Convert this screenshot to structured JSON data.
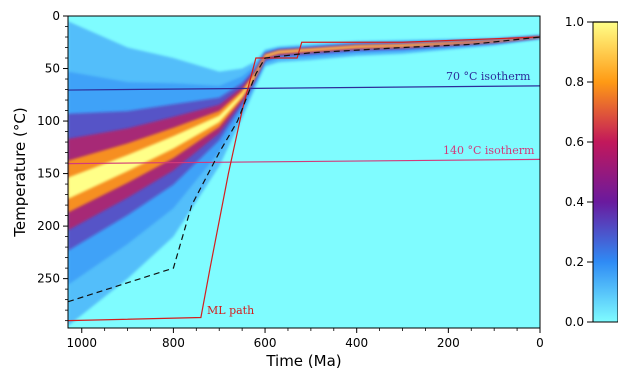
{
  "chart_data": {
    "type": "heatmap",
    "title": "",
    "xlabel": "Time (Ma)",
    "ylabel": "Temperature (°C)",
    "xlim": [
      1030,
      0
    ],
    "ylim": [
      297,
      0
    ],
    "x_ticks": [
      1000,
      800,
      600,
      400,
      200,
      0
    ],
    "y_ticks": [
      0,
      50,
      100,
      150,
      200,
      250
    ],
    "x_tick_labels": [
      "1000",
      "800",
      "600",
      "400",
      "200",
      "0"
    ],
    "y_tick_labels": [
      "0",
      "50",
      "100",
      "150",
      "200",
      "250"
    ],
    "colorbar": {
      "min": 0.0,
      "max": 1.0,
      "ticks": [
        0.0,
        0.2,
        0.4,
        0.6,
        0.8,
        1.0
      ],
      "tick_labels": [
        "0.0",
        "0.2",
        "0.4",
        "0.6",
        "0.8",
        "1.0"
      ],
      "colors": [
        "#7ffcff",
        "#2f8bf5",
        "#6a1a9e",
        "#c2185b",
        "#ff9a14",
        "#ffff88"
      ]
    },
    "background_color": "#7ffcff",
    "isotherms": [
      {
        "label": "70 °C isotherm",
        "color": "#2d2d9a",
        "x": [
          1030,
          0
        ],
        "y": [
          70.5,
          66.5
        ]
      },
      {
        "label": "140 °C isotherm",
        "color": "#d23a7a",
        "x": [
          1030,
          0
        ],
        "y": [
          140.5,
          136.5
        ]
      }
    ],
    "series": [
      {
        "name": "ML path",
        "color": "#d41e1e",
        "style": "solid",
        "x": [
          1030,
          740,
          720,
          680,
          650,
          620,
          610,
          530,
          520,
          300,
          0
        ],
        "y": [
          290,
          287,
          240,
          150,
          90,
          40,
          40,
          40,
          25,
          25,
          20
        ]
      },
      {
        "style": "dashed",
        "color": "#111111",
        "x": [
          1030,
          800,
          760,
          700,
          660,
          620,
          600,
          500,
          300,
          150,
          0
        ],
        "y": [
          272,
          240,
          180,
          130,
          100,
          55,
          40,
          35,
          30,
          27,
          20
        ]
      }
    ],
    "density_paths": {
      "x": [
        1030,
        900,
        800,
        700,
        650,
        620,
        600,
        570,
        500,
        400,
        300,
        200,
        100,
        0
      ],
      "center": [
        165,
        140,
        120,
        98,
        75,
        55,
        38,
        34,
        32,
        29,
        28,
        26,
        24,
        20
      ],
      "spread_up": [
        160,
        110,
        80,
        45,
        25,
        12,
        6,
        5,
        5,
        5,
        5,
        4,
        3,
        2
      ],
      "spread_down": [
        130,
        110,
        90,
        45,
        22,
        12,
        10,
        10,
        10,
        9,
        8,
        6,
        4,
        2
      ]
    }
  },
  "annotations": {
    "iso70": "70 °C isotherm",
    "iso140": "140 °C isotherm",
    "mlpath": "ML path"
  }
}
